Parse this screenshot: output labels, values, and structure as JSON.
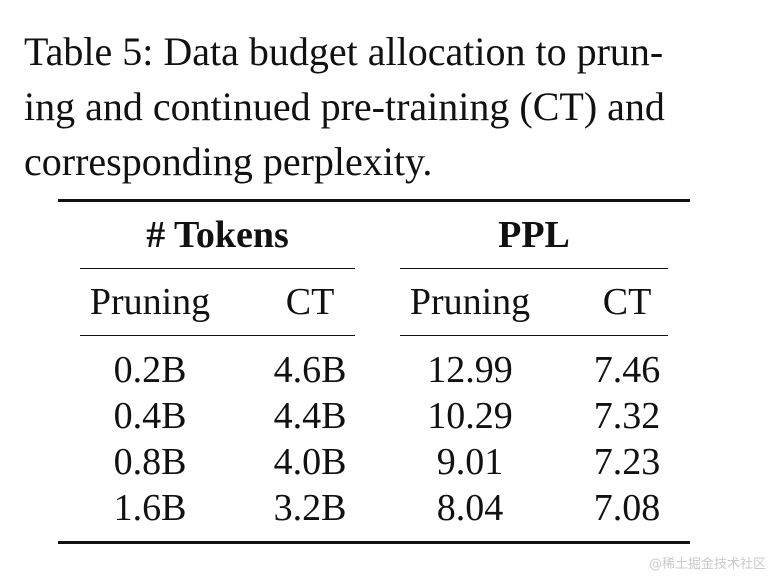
{
  "caption": {
    "line1": "Table 5: Data budget allocation to prun-",
    "line2": "ing and continued pre-training (CT) and",
    "line3": "corresponding perplexity."
  },
  "table": {
    "group_headers": {
      "tokens": "# Tokens",
      "ppl": "PPL"
    },
    "sub_headers": {
      "tokens_pruning": "Pruning",
      "tokens_ct": "CT",
      "ppl_pruning": "Pruning",
      "ppl_ct": "CT"
    },
    "rows": [
      {
        "tokens_pruning": "0.2B",
        "tokens_ct": "4.6B",
        "ppl_pruning": "12.99",
        "ppl_ct": "7.46"
      },
      {
        "tokens_pruning": "0.4B",
        "tokens_ct": "4.4B",
        "ppl_pruning": "10.29",
        "ppl_ct": "7.32"
      },
      {
        "tokens_pruning": "0.8B",
        "tokens_ct": "4.0B",
        "ppl_pruning": "9.01",
        "ppl_ct": "7.23"
      },
      {
        "tokens_pruning": "1.6B",
        "tokens_ct": "3.2B",
        "ppl_pruning": "8.04",
        "ppl_ct": "7.08"
      }
    ]
  },
  "watermark": "@稀土掘金技术社区"
}
